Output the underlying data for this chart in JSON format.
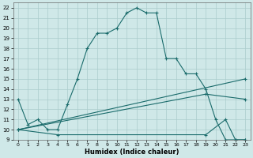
{
  "xlabel": "Humidex (Indice chaleur)",
  "bg_color": "#cfe8e8",
  "grid_color": "#aacccc",
  "line_color": "#1a6b6b",
  "xlim": [
    -0.5,
    23.5
  ],
  "ylim": [
    9,
    22.5
  ],
  "xticks": [
    0,
    1,
    2,
    3,
    4,
    5,
    6,
    7,
    8,
    9,
    10,
    11,
    12,
    13,
    14,
    15,
    16,
    17,
    18,
    19,
    20,
    21,
    22,
    23
  ],
  "yticks": [
    9,
    10,
    11,
    12,
    13,
    14,
    15,
    16,
    17,
    18,
    19,
    20,
    21,
    22
  ],
  "line1_x": [
    0,
    1,
    2,
    3,
    4,
    5,
    6,
    7,
    8,
    9,
    10,
    11,
    12,
    13,
    14,
    15,
    16,
    17,
    18,
    19,
    20,
    21,
    22,
    23
  ],
  "line1_y": [
    13.0,
    10.5,
    11.0,
    10.0,
    10.0,
    12.5,
    15.0,
    18.0,
    19.5,
    19.5,
    20.0,
    21.5,
    22.0,
    21.5,
    21.5,
    17.0,
    17.0,
    15.5,
    15.5,
    14.0,
    11.0,
    9.0,
    9.0,
    9.0
  ],
  "line2_x": [
    0,
    23
  ],
  "line2_y": [
    10.0,
    15.0
  ],
  "line3_x": [
    0,
    19,
    23
  ],
  "line3_y": [
    10.0,
    13.5,
    13.0
  ],
  "line4_x": [
    0,
    4,
    19,
    21,
    22,
    23
  ],
  "line4_y": [
    10.0,
    9.5,
    9.5,
    11.0,
    9.0,
    9.0
  ]
}
